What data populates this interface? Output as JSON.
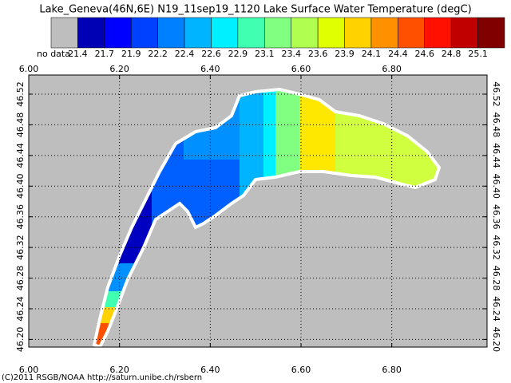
{
  "title": "Lake_Geneva(46N,6E) N19_11sep19_1120 Lake Surface Water Temperature (degC)",
  "colorbar": {
    "no_data_label": "no data",
    "no_data_color": "#bebebe",
    "colors": [
      "#0000b4",
      "#0000ff",
      "#0040ff",
      "#0080ff",
      "#00b4ff",
      "#00f0ff",
      "#40ffb0",
      "#80ff80",
      "#b0ff50",
      "#e0ff00",
      "#ffd200",
      "#ff9000",
      "#ff5000",
      "#ff1000",
      "#c00000",
      "#800000"
    ],
    "levels": [
      21.4,
      21.7,
      21.9,
      22.2,
      22.4,
      22.6,
      22.9,
      23.1,
      23.4,
      23.6,
      23.9,
      24.1,
      24.4,
      24.6,
      24.8,
      25.1
    ]
  },
  "map": {
    "xlim": [
      6.0,
      7.01
    ],
    "ylim": [
      46.19,
      46.545
    ],
    "xticks": [
      {
        "value": 6.0,
        "label": "6.00"
      },
      {
        "value": 6.2,
        "label": "6.20"
      },
      {
        "value": 6.4,
        "label": "6.40"
      },
      {
        "value": 6.6,
        "label": "6.60"
      },
      {
        "value": 6.8,
        "label": "6.80"
      }
    ],
    "yticks": [
      {
        "value": 46.2,
        "label": "46.20"
      },
      46.24,
      46.28,
      46.32,
      46.36,
      {
        "value": 46.4,
        "label": "46.40"
      },
      46.44,
      46.48,
      46.52
    ],
    "grid": true
  },
  "credit": "(C)2011 RSGB/NOAA http://saturn.unibe.ch/rsbern"
}
